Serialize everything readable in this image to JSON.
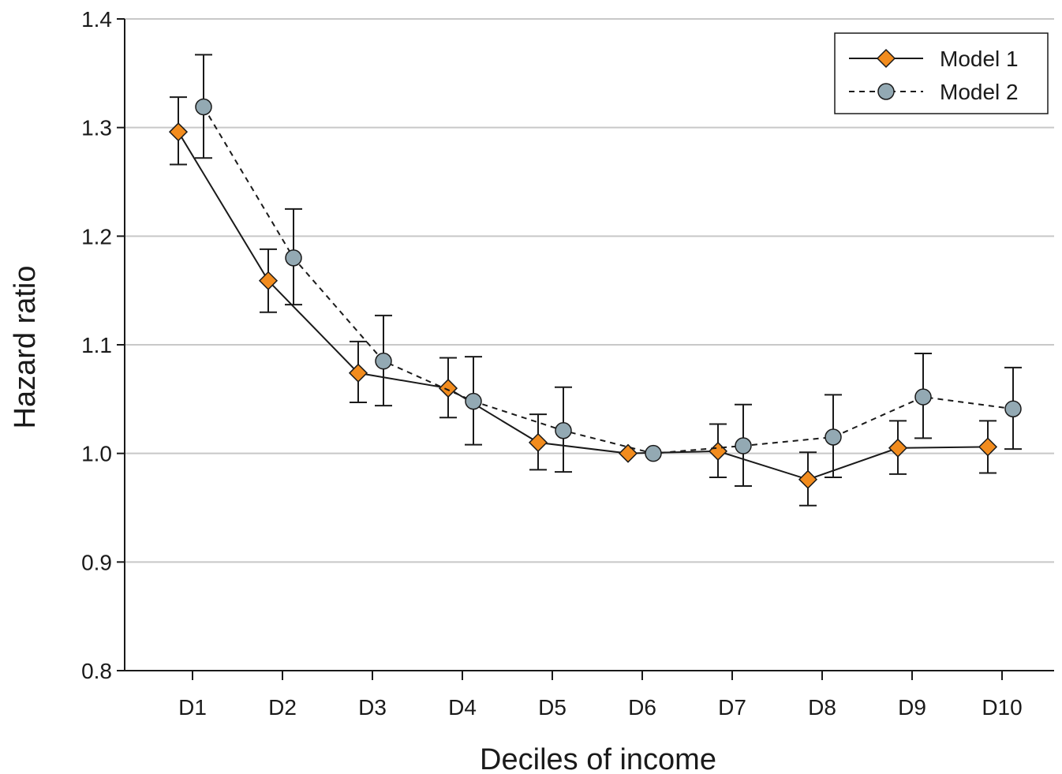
{
  "chart_data": {
    "type": "line",
    "title": "",
    "xlabel": "Deciles of income",
    "ylabel": "Hazard ratio",
    "ylim": [
      0.8,
      1.4
    ],
    "yticks": [
      "0.8",
      "0.9",
      "1.0",
      "1.1",
      "1.2",
      "1.3",
      "1.4"
    ],
    "ytick_values": [
      0.8,
      0.9,
      1.0,
      1.1,
      1.2,
      1.3,
      1.4
    ],
    "categories": [
      "D1",
      "D2",
      "D3",
      "D4",
      "D5",
      "D6",
      "D7",
      "D8",
      "D9",
      "D10"
    ],
    "grid": "horizontal",
    "legend_position": "top-right",
    "series": [
      {
        "name": "Model 1",
        "marker": "diamond",
        "line_style": "solid",
        "color": "#f28c1e",
        "values": [
          1.296,
          1.159,
          1.074,
          1.06,
          1.01,
          1.0,
          1.002,
          0.976,
          1.005,
          1.006
        ],
        "lower": [
          1.266,
          1.13,
          1.047,
          1.033,
          0.985,
          1.0,
          0.978,
          0.952,
          0.981,
          0.982
        ],
        "upper": [
          1.328,
          1.188,
          1.103,
          1.088,
          1.036,
          1.0,
          1.027,
          1.001,
          1.03,
          1.03
        ]
      },
      {
        "name": "Model 2",
        "marker": "circle",
        "line_style": "dashed",
        "color": "#93a9b3",
        "values": [
          1.319,
          1.18,
          1.085,
          1.048,
          1.021,
          1.0,
          1.007,
          1.015,
          1.052,
          1.041
        ],
        "lower": [
          1.272,
          1.137,
          1.044,
          1.008,
          0.983,
          1.0,
          0.97,
          0.978,
          1.014,
          1.004
        ],
        "upper": [
          1.367,
          1.225,
          1.127,
          1.089,
          1.061,
          1.0,
          1.045,
          1.054,
          1.092,
          1.079
        ]
      }
    ]
  }
}
